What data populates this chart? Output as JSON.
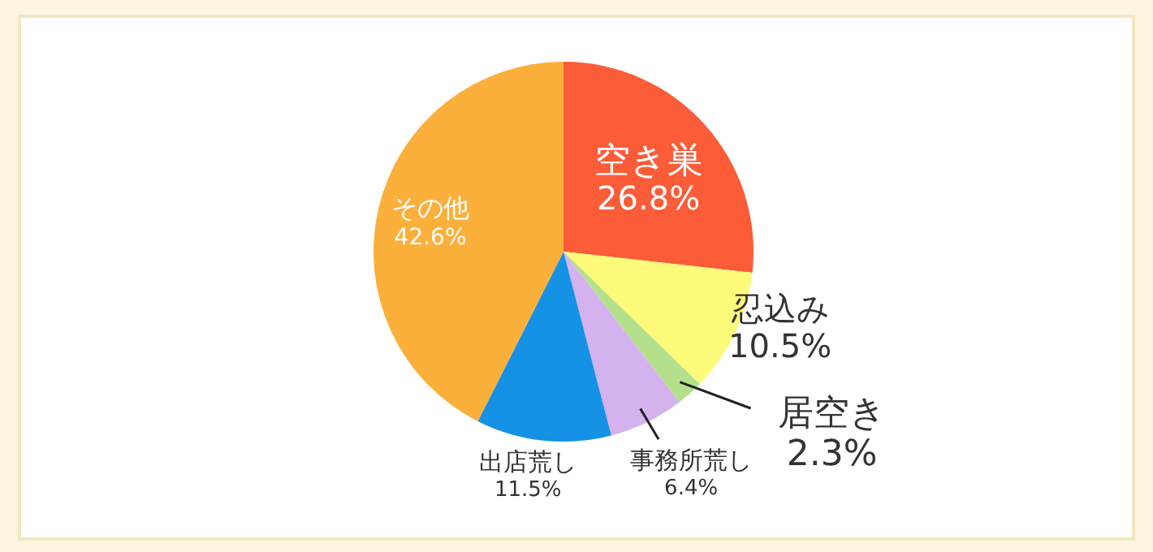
{
  "chart_data": {
    "type": "pie",
    "categories": [
      "空き巣",
      "忍込み",
      "居空き",
      "事務所荒し",
      "出店荒し",
      "その他"
    ],
    "values": [
      26.8,
      10.5,
      2.3,
      6.4,
      11.5,
      42.6
    ],
    "colors": [
      "#fc5c38",
      "#fffb7a",
      "#b4e08c",
      "#d4b2ee",
      "#1591e6",
      "#fbb03c"
    ],
    "value_labels": [
      "26.8%",
      "10.5%",
      "2.3%",
      "6.4%",
      "11.5%",
      "42.6%"
    ]
  }
}
